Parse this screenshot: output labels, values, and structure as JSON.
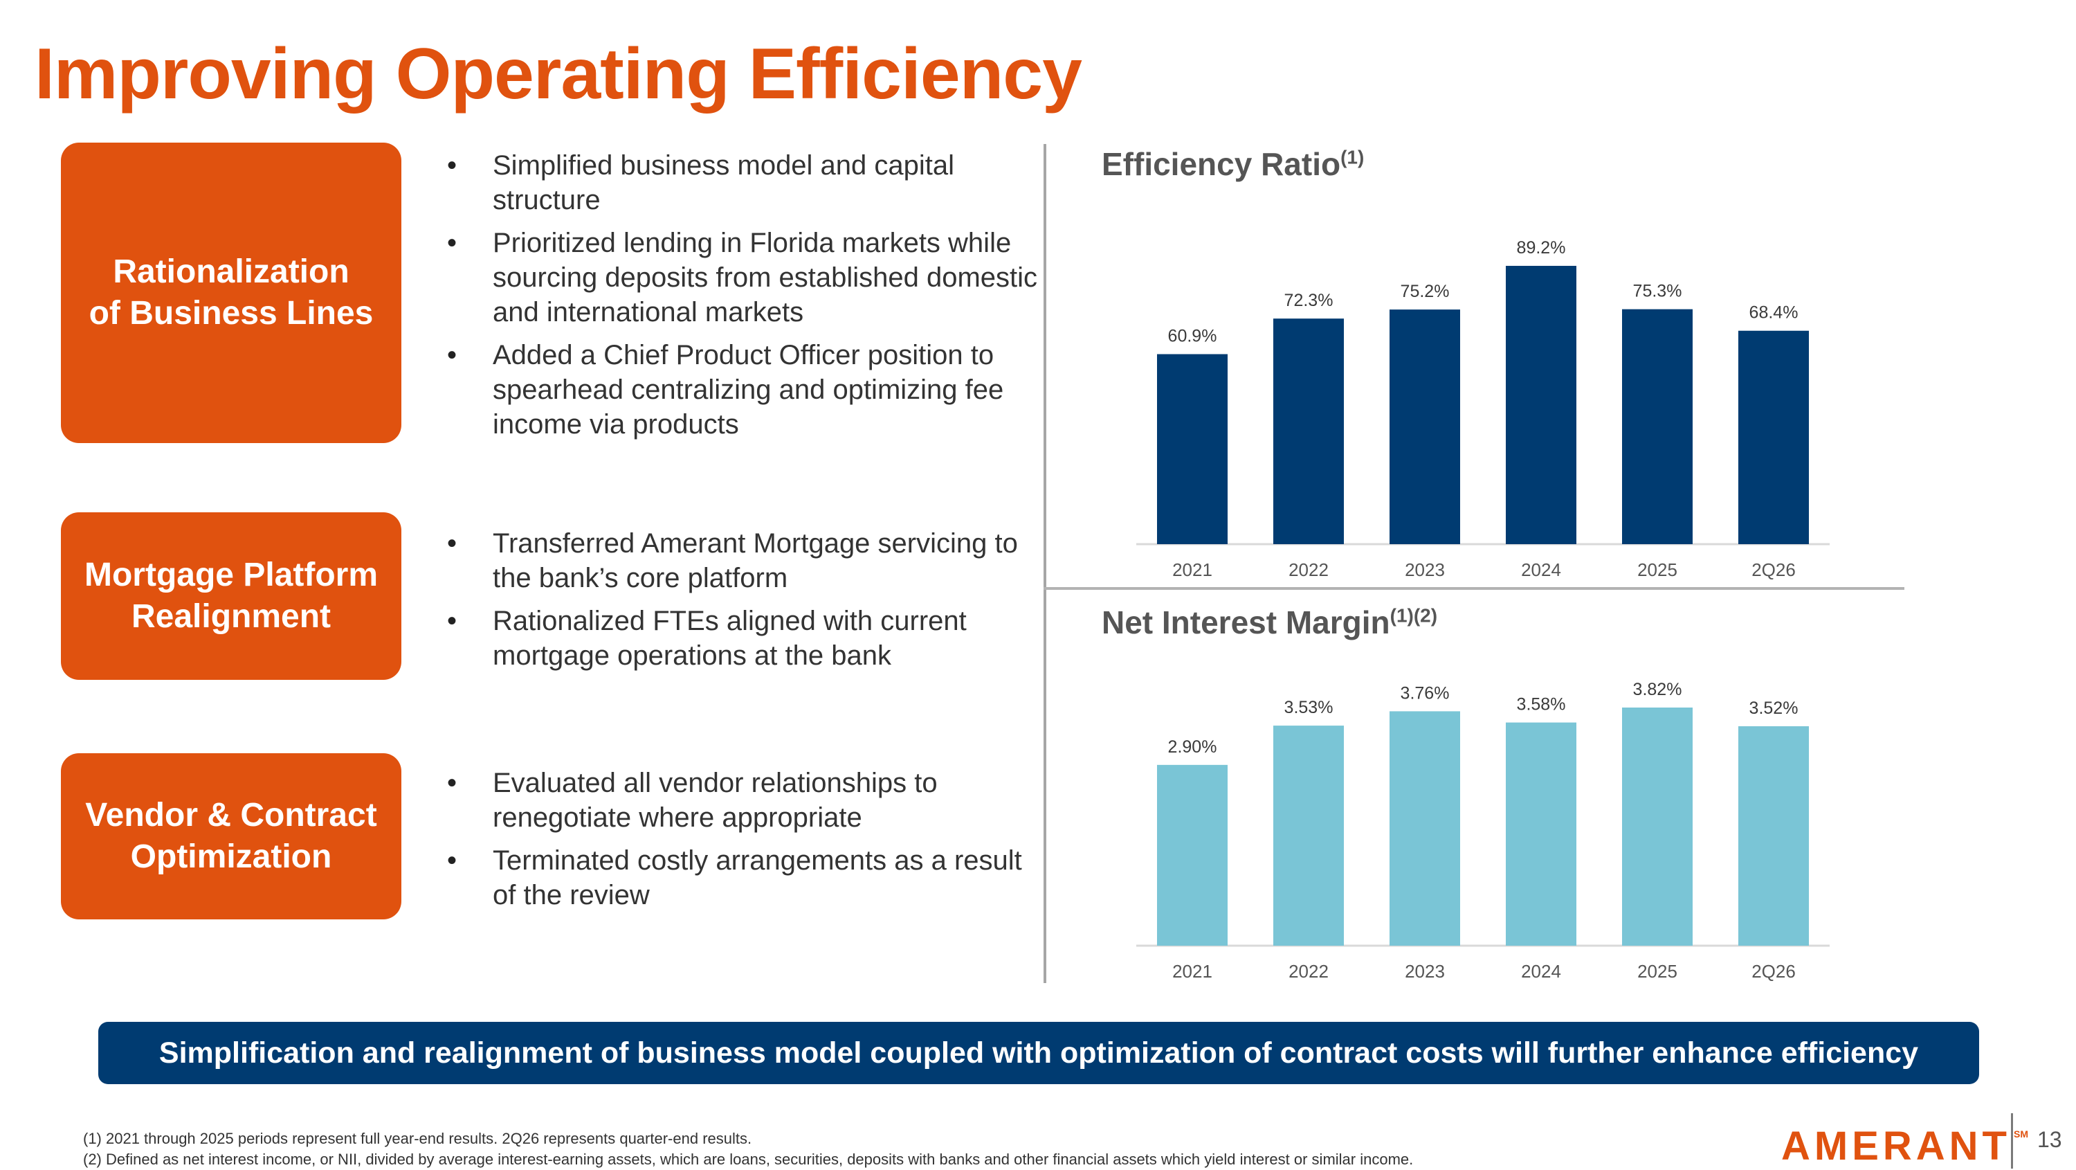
{
  "title": "Improving Operating Efficiency",
  "sections": [
    {
      "label": "Rationalization\nof Business Lines",
      "bullets": [
        "Simplified business model and capital structure",
        "Prioritized lending in Florida markets while sourcing deposits from established domestic and international markets",
        "Added a Chief Product Officer position to spearhead centralizing and optimizing fee income via products"
      ]
    },
    {
      "label": "Mortgage Platform\nRealignment",
      "bullets": [
        "Transferred Amerant Mortgage servicing to the bank’s core platform",
        "Rationalized FTEs aligned with current mortgage operations at the bank"
      ]
    },
    {
      "label": "Vendor & Contract\nOptimization",
      "bullets": [
        "Evaluated all vendor relationships to renegotiate where appropriate",
        "Terminated costly arrangements as a result of the review"
      ]
    }
  ],
  "chart_data": [
    {
      "type": "bar",
      "title": "Efficiency Ratio",
      "title_superscript": "(1)",
      "categories": [
        "2021",
        "2022",
        "2023",
        "2024",
        "2025",
        "2Q26"
      ],
      "values": [
        60.9,
        72.3,
        75.2,
        89.2,
        75.3,
        68.4
      ],
      "value_labels": [
        "60.9%",
        "72.3%",
        "75.2%",
        "89.2%",
        "75.3%",
        "68.4%"
      ],
      "unit": "%",
      "color": "#003b71",
      "grid": false,
      "legend": "none"
    },
    {
      "type": "bar",
      "title": "Net Interest Margin",
      "title_superscript": "(1)(2)",
      "categories": [
        "2021",
        "2022",
        "2023",
        "2024",
        "2025",
        "2Q26"
      ],
      "values": [
        2.9,
        3.53,
        3.76,
        3.58,
        3.82,
        3.52
      ],
      "value_labels": [
        "2.90%",
        "3.53%",
        "3.76%",
        "3.58%",
        "3.82%",
        "3.52%"
      ],
      "unit": "%",
      "color": "#7ac5d6",
      "grid": false,
      "legend": "none"
    }
  ],
  "banner": "Simplification and realignment of business model coupled with optimization of contract costs will further enhance efficiency",
  "footnotes": [
    "(1) 2021 through 2025 periods represent full year-end results. 2Q26 represents quarter-end results.",
    "(2) Defined as net interest income, or NII, divided by average interest-earning assets, which are loans, securities, deposits with banks and other financial assets which yield interest or similar income."
  ],
  "logo": {
    "text": "AMERANT",
    "mark": "SM"
  },
  "page_number": "13",
  "colors": {
    "accent": "#e0520f",
    "navy": "#003b71",
    "light_blue": "#7ac5d6"
  }
}
